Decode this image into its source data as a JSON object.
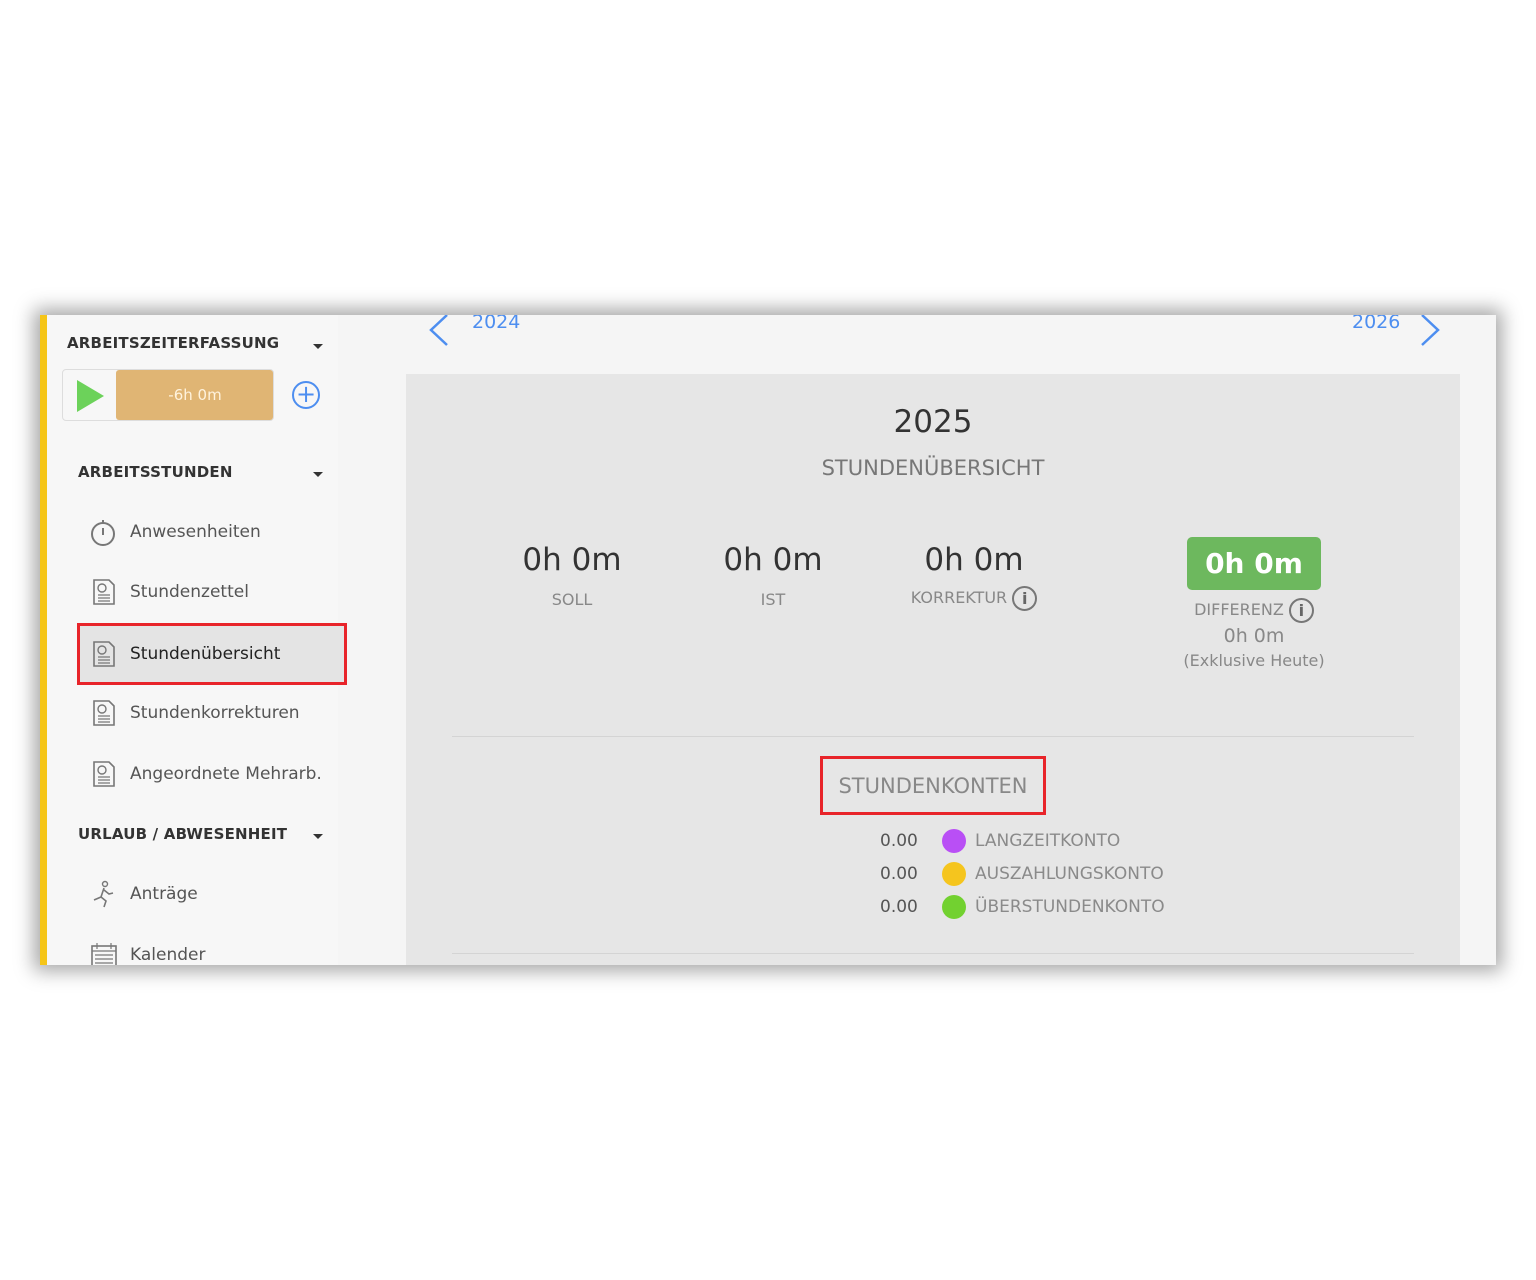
{
  "sidebar": {
    "sections": [
      {
        "label": "ARBEITSZEITERFASSUNG"
      },
      {
        "label": "ARBEITSSTUNDEN"
      },
      {
        "label": "URLAUB / ABWESENHEIT"
      }
    ],
    "timer": {
      "value": "-6h 0m",
      "color": "#e0b574",
      "play_color": "#6cd25a"
    },
    "items": [
      {
        "label": "Anwesenheiten",
        "icon": "stopwatch-icon"
      },
      {
        "label": "Stundenzettel",
        "icon": "timesheet-icon"
      },
      {
        "label": "Stundenübersicht",
        "icon": "timesheet-icon",
        "selected": true
      },
      {
        "label": "Stundenkorrekturen",
        "icon": "timesheet-icon"
      },
      {
        "label": "Angeordnete Mehrarb.",
        "icon": "timesheet-icon"
      },
      {
        "label": "Anträge",
        "icon": "running-person-icon"
      },
      {
        "label": "Kalender",
        "icon": "calendar-icon"
      }
    ]
  },
  "nav": {
    "prev": "2024",
    "next": "2026"
  },
  "overview": {
    "year": "2025",
    "title": "STUNDENÜBERSICHT",
    "soll": {
      "value": "0h 0m",
      "label": "SOLL"
    },
    "ist": {
      "value": "0h 0m",
      "label": "IST"
    },
    "korrektur": {
      "value": "0h 0m",
      "label": "KORREKTUR"
    },
    "differenz": {
      "value": "0h 0m",
      "label": "DIFFERENZ",
      "sub_value": "0h 0m",
      "note": "(Exklusive Heute)",
      "color": "#6db85e"
    }
  },
  "accounts": {
    "title": "STUNDENKONTEN",
    "items": [
      {
        "value": "0.00",
        "name": "LANGZEITKONTO",
        "color": "#b94ff5"
      },
      {
        "value": "0.00",
        "name": "AUSZAHLUNGSKONTO",
        "color": "#f5c51e"
      },
      {
        "value": "0.00",
        "name": "ÜBERSTUNDENKONTO",
        "color": "#72d130"
      }
    ]
  }
}
